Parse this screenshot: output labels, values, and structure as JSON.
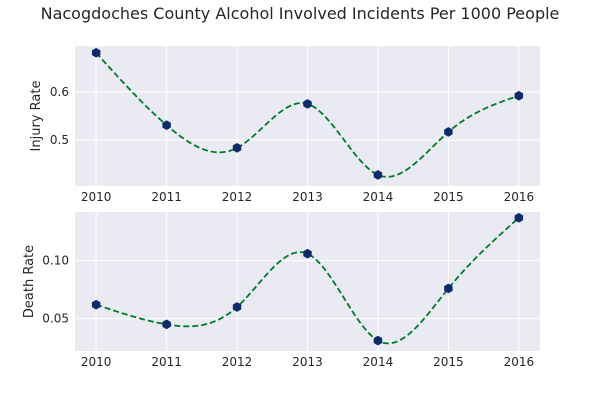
{
  "chart_data": {
    "title": "Nacogdoches County Alcohol Involved Incidents Per 1000 People",
    "type": "line",
    "grid": true,
    "colors": {
      "background": "#eaeaf2",
      "grid": "#ffffff",
      "marker": "#0d2b6b",
      "line": "#007a2a"
    },
    "subplots": [
      {
        "ylabel": "Injury Rate",
        "x": [
          2010,
          2011,
          2012,
          2013,
          2014,
          2015,
          2016
        ],
        "values": [
          0.681,
          0.531,
          0.484,
          0.575,
          0.428,
          0.517,
          0.592
        ],
        "xlim": [
          2009.7,
          2016.3
        ],
        "ylim": [
          0.405,
          0.695
        ],
        "yticks": [
          0.5,
          0.6
        ],
        "ytick_labels": [
          "0.5",
          "0.6"
        ],
        "xticks": [
          "2010",
          "2011",
          "2012",
          "2013",
          "2014",
          "2015",
          "2016"
        ]
      },
      {
        "ylabel": "Death Rate",
        "x": [
          2010,
          2011,
          2012,
          2013,
          2014,
          2015,
          2016
        ],
        "values": [
          0.062,
          0.045,
          0.06,
          0.106,
          0.031,
          0.076,
          0.137
        ],
        "xlim": [
          2009.7,
          2016.3
        ],
        "ylim": [
          0.022,
          0.142
        ],
        "yticks": [
          0.05,
          0.1
        ],
        "ytick_labels": [
          "0.05",
          "0.10"
        ],
        "xticks": [
          "2010",
          "2011",
          "2012",
          "2013",
          "2014",
          "2015",
          "2016"
        ]
      }
    ]
  }
}
